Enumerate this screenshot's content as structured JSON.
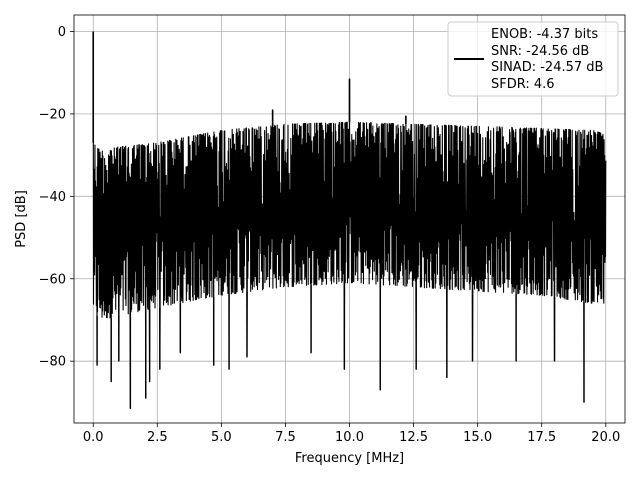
{
  "chart_data": {
    "type": "line",
    "xlabel": "Frequency [MHz]",
    "ylabel": "PSD [dB]",
    "xlim": [
      -0.75,
      20.75
    ],
    "ylim": [
      -95,
      4
    ],
    "xticks": [
      0.0,
      2.5,
      5.0,
      7.5,
      10.0,
      12.5,
      15.0,
      17.5,
      20.0
    ],
    "xtick_labels": [
      "0.0",
      "2.5",
      "5.0",
      "7.5",
      "10.0",
      "12.5",
      "15.0",
      "17.5",
      "20.0"
    ],
    "yticks": [
      0,
      -20,
      -40,
      -60,
      -80
    ],
    "ytick_labels": [
      "0",
      "−20",
      "−40",
      "−60",
      "−80"
    ],
    "grid": true,
    "legend": {
      "placement": "top-right",
      "lines": [
        "ENOB: -4.37 bits",
        "SNR: -24.56 dB",
        "SINAD: -24.57 dB",
        "SFDR: 4.6"
      ]
    },
    "series": [
      {
        "color": "#000000",
        "noise_band": {
          "x": [
            0.0,
            0.3,
            1.0,
            2.5,
            5.0,
            7.5,
            10.0,
            12.5,
            15.0,
            17.5,
            19.5,
            20.0
          ],
          "upper": [
            -27,
            -29,
            -28,
            -27,
            -24,
            -22.5,
            -22,
            -22.5,
            -23,
            -23.5,
            -24,
            -25
          ],
          "lower": [
            -68,
            -70,
            -69,
            -67,
            -64,
            -62,
            -61,
            -62,
            -63,
            -64,
            -66,
            -67
          ]
        },
        "peaks": [
          {
            "x": 0.0,
            "y": 0.0
          },
          {
            "x": 10.0,
            "y": -11.5
          },
          {
            "x": 7.0,
            "y": -19
          },
          {
            "x": 12.2,
            "y": -20.5
          }
        ],
        "dips": [
          {
            "x": 0.15,
            "y": -81
          },
          {
            "x": 0.7,
            "y": -85
          },
          {
            "x": 1.0,
            "y": -80
          },
          {
            "x": 1.45,
            "y": -91.5
          },
          {
            "x": 2.05,
            "y": -89
          },
          {
            "x": 2.2,
            "y": -85
          },
          {
            "x": 2.6,
            "y": -82
          },
          {
            "x": 3.4,
            "y": -78
          },
          {
            "x": 4.7,
            "y": -81
          },
          {
            "x": 5.3,
            "y": -82
          },
          {
            "x": 6.0,
            "y": -79
          },
          {
            "x": 8.5,
            "y": -78
          },
          {
            "x": 9.8,
            "y": -82
          },
          {
            "x": 11.2,
            "y": -87
          },
          {
            "x": 12.6,
            "y": -82
          },
          {
            "x": 13.8,
            "y": -84
          },
          {
            "x": 14.8,
            "y": -80
          },
          {
            "x": 16.5,
            "y": -80
          },
          {
            "x": 18.0,
            "y": -80
          },
          {
            "x": 19.15,
            "y": -90
          }
        ]
      }
    ]
  }
}
